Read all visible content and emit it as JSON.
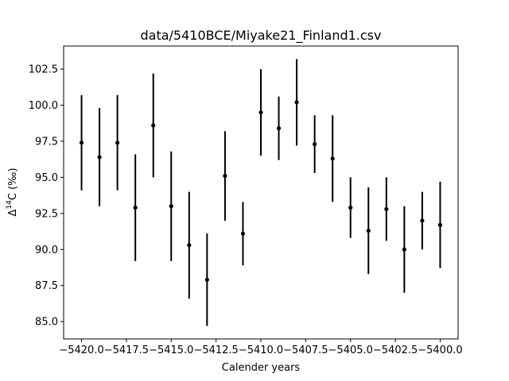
{
  "chart_data": {
    "type": "scatter",
    "title": "data/5410BCE/Miyake21_Finland1.csv",
    "xlabel": "Calender years",
    "ylabel_prefix": "Δ",
    "ylabel_sup": "14",
    "ylabel_suffix": "C (‰)",
    "xlim": [
      -5421.0,
      -5399.0
    ],
    "ylim": [
      83.8,
      104.1
    ],
    "xticks": [
      -5420.0,
      -5417.5,
      -5415.0,
      -5412.5,
      -5410.0,
      -5407.5,
      -5405.0,
      -5402.5,
      -5400.0
    ],
    "xtick_labels": [
      "−5420.0",
      "−5417.5",
      "−5415.0",
      "−5412.5",
      "−5410.0",
      "−5407.5",
      "−5405.0",
      "−5402.5",
      "−5400.0"
    ],
    "yticks": [
      85.0,
      87.5,
      90.0,
      92.5,
      95.0,
      97.5,
      100.0,
      102.5
    ],
    "ytick_labels": [
      "85.0",
      "87.5",
      "90.0",
      "92.5",
      "95.0",
      "97.5",
      "100.0",
      "102.5"
    ],
    "grid": false,
    "marker_color": "#000000",
    "points": [
      {
        "x": -5420,
        "y": 97.4,
        "err": 3.3
      },
      {
        "x": -5419,
        "y": 96.4,
        "err": 3.4
      },
      {
        "x": -5418,
        "y": 97.4,
        "err": 3.3
      },
      {
        "x": -5417,
        "y": 92.9,
        "err": 3.7
      },
      {
        "x": -5416,
        "y": 98.6,
        "err": 3.6
      },
      {
        "x": -5415,
        "y": 93.0,
        "err": 3.8
      },
      {
        "x": -5414,
        "y": 90.3,
        "err": 3.7
      },
      {
        "x": -5413,
        "y": 87.9,
        "err": 3.2
      },
      {
        "x": -5412,
        "y": 95.1,
        "err": 3.1
      },
      {
        "x": -5411,
        "y": 91.1,
        "err": 2.2
      },
      {
        "x": -5410,
        "y": 99.5,
        "err": 3.0
      },
      {
        "x": -5409,
        "y": 98.4,
        "err": 2.2
      },
      {
        "x": -5408,
        "y": 100.2,
        "err": 3.0
      },
      {
        "x": -5407,
        "y": 97.3,
        "err": 2.0
      },
      {
        "x": -5406,
        "y": 96.3,
        "err": 3.0
      },
      {
        "x": -5405,
        "y": 92.9,
        "err": 2.1
      },
      {
        "x": -5404,
        "y": 91.3,
        "err": 3.0
      },
      {
        "x": -5403,
        "y": 92.8,
        "err": 2.2
      },
      {
        "x": -5402,
        "y": 90.0,
        "err": 3.0
      },
      {
        "x": -5401,
        "y": 92.0,
        "err": 2.0
      },
      {
        "x": -5400,
        "y": 91.7,
        "err": 3.0
      }
    ]
  }
}
